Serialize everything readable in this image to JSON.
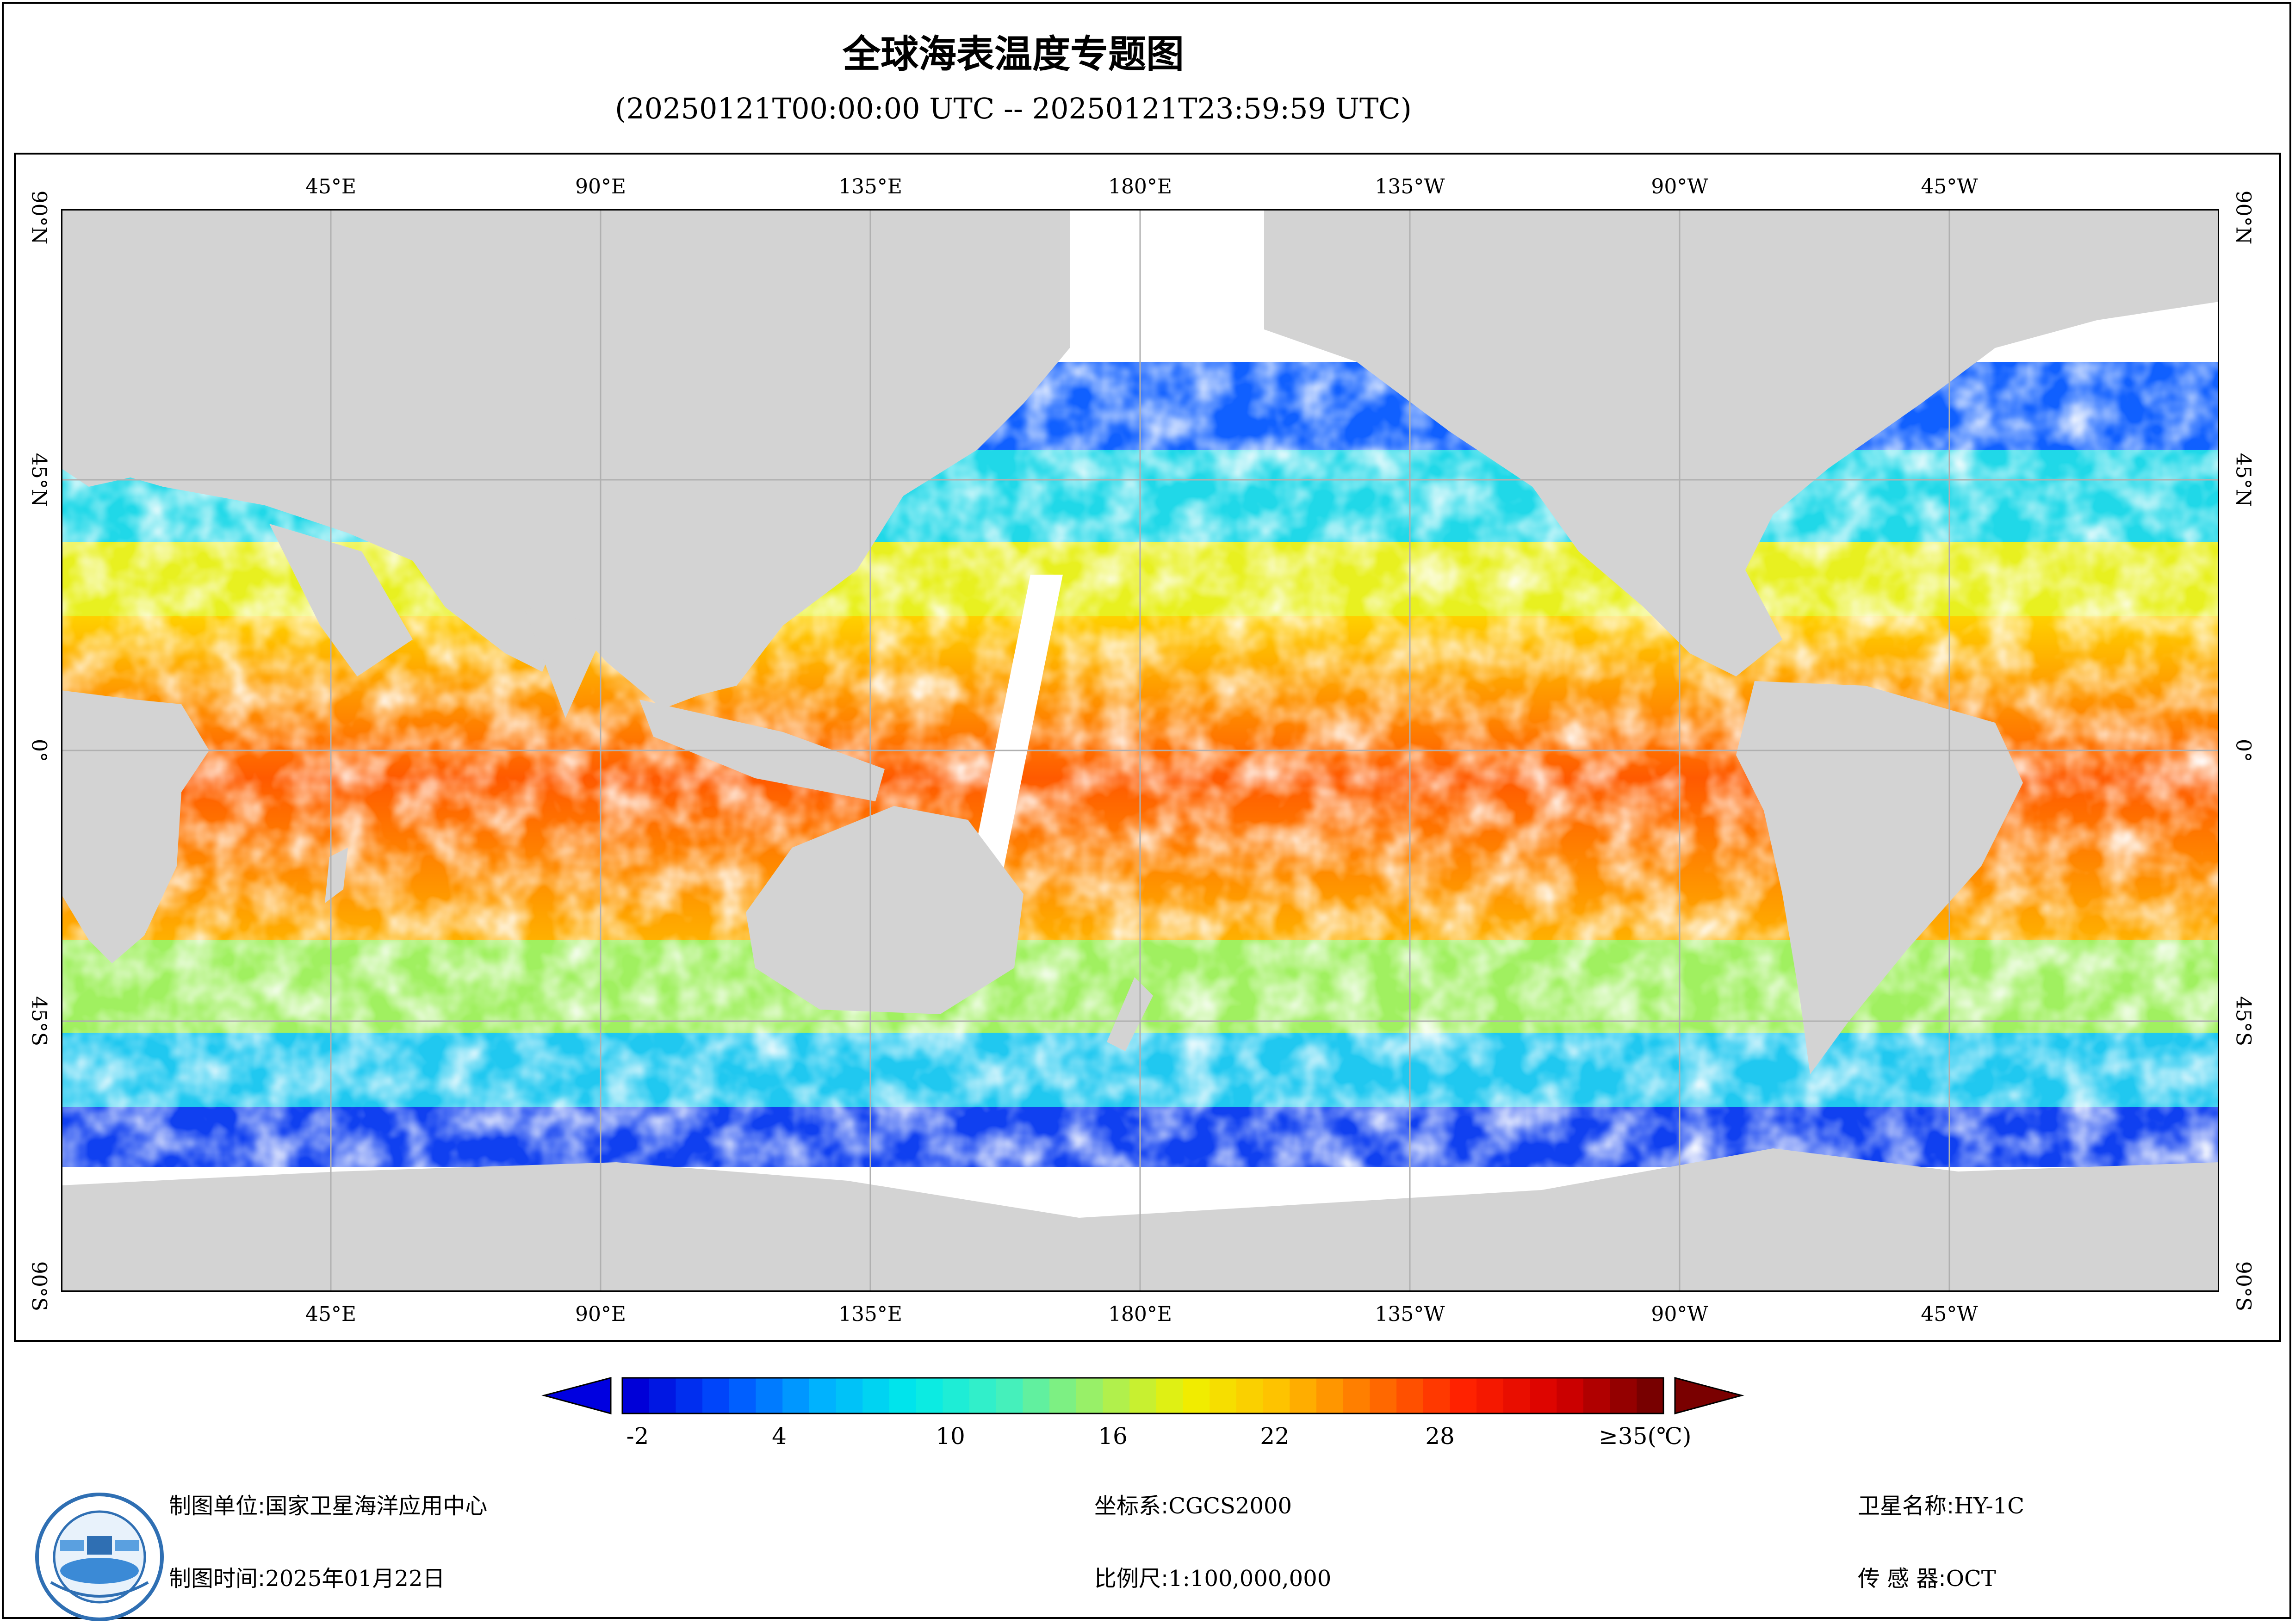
{
  "title": "全球海表温度专题图",
  "subtitle": "(20250121T00:00:00 UTC -- 20250121T23:59:59 UTC)",
  "map": {
    "lon_labels": [
      "45°E",
      "90°E",
      "135°E",
      "180°E",
      "135°W",
      "90°W",
      "45°W"
    ],
    "lat_labels": [
      "90°N",
      "45°N",
      "0°",
      "45°S",
      "90°S"
    ],
    "colors": {
      "land": "#d3d3d3",
      "ocean_nodata": "#ffffff",
      "grid": "#b0b0b0"
    }
  },
  "colorbar": {
    "min": -4,
    "max": 35,
    "ticks": [
      "-2",
      "4",
      "10",
      "16",
      "22",
      "28"
    ],
    "last_tick": "≥35(℃)",
    "colors": [
      "#0000d8",
      "#0050ff",
      "#00b0ff",
      "#00eaea",
      "#40f0c0",
      "#a0f060",
      "#f0f000",
      "#ffc000",
      "#ff7000",
      "#ff2000",
      "#d80000",
      "#780000"
    ]
  },
  "footer": {
    "unit_label": "制图单位:",
    "unit_value": "国家卫星海洋应用中心",
    "time_label": "制图时间:",
    "time_value": "2025年01月22日",
    "crs_label": "坐标系:",
    "crs_value": "CGCS2000",
    "scale_label": "比例尺:",
    "scale_value": "1:100,000,000",
    "satellite_label": "卫星名称:",
    "satellite_value": "HY-1C",
    "sensor_label": "传 感 器:",
    "sensor_value": "OCT"
  }
}
